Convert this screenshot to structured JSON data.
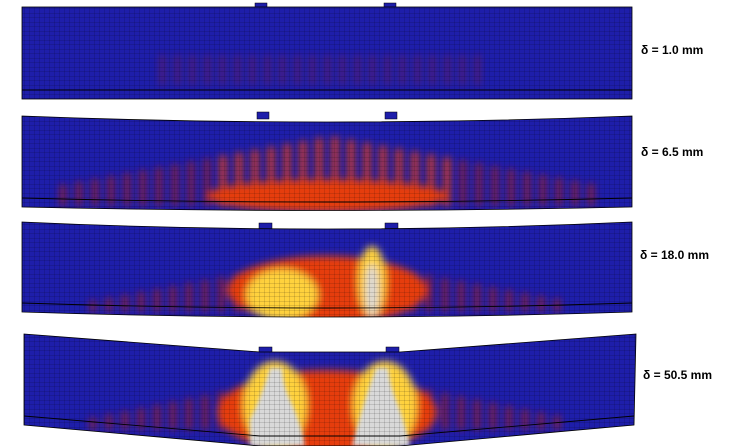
{
  "panels": [
    {
      "label": "δ = 1.0 mm",
      "deflection_mm": 1.0,
      "damage": "minor flexural cracking"
    },
    {
      "label": "δ = 6.5 mm",
      "deflection_mm": 6.5,
      "damage": "distributed flexural cracking"
    },
    {
      "label": "δ = 18.0 mm",
      "deflection_mm": 18.0,
      "damage": "localized cracking under load points"
    },
    {
      "label": "δ = 50.5 mm",
      "deflection_mm": 50.5,
      "damage": "severe damage and crushing under load points"
    }
  ],
  "colors": {
    "undamaged": "#1e1eaa",
    "mesh": "#000000",
    "low": "#8a1a3a",
    "mid": "#e63c10",
    "high": "#ffd23c",
    "max": "#d9d9d9"
  }
}
